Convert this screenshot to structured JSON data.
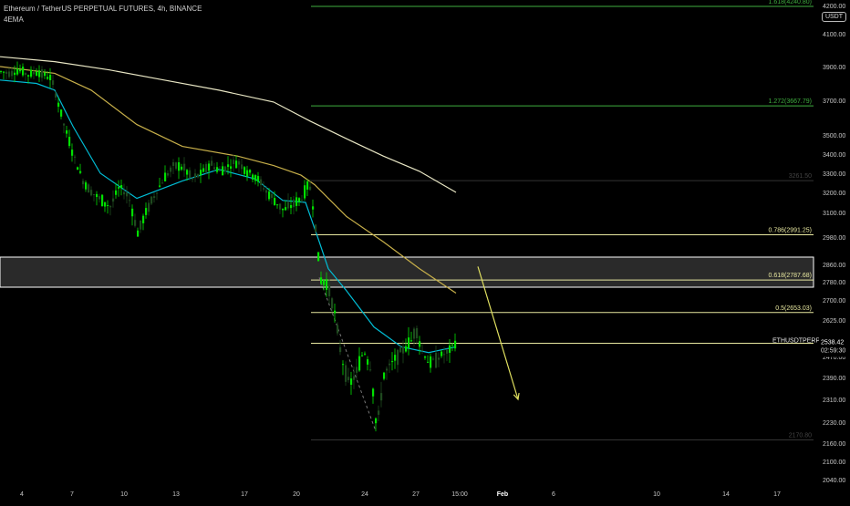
{
  "header": {
    "title": "Ethereum / TetherUS PERPETUAL FUTURES, 4h, BINANCE",
    "indicator": "4EMA",
    "currency_badge": "USDT"
  },
  "colors": {
    "background": "#000000",
    "up_candle": "#00e000",
    "down_candle": "#1f4a1f",
    "ema_fast": "#00bcd4",
    "ema_mid": "#26a69a",
    "ema_slow": "#c8b04a",
    "ema_long": "#e8e6c4",
    "fib_green": "#3fae3f",
    "fib_yellow": "#e8e8a0",
    "zone_fill": "#2a2a2a",
    "arrow": "#e0e060",
    "axis_text": "#c8c8c8"
  },
  "chart_data": {
    "type": "candlestick",
    "title": "Ethereum / TetherUS PERPETUAL FUTURES, 4h, BINANCE",
    "symbol": "ETHUSDTPERP",
    "last_price": "2538.42",
    "countdown": "02:59:30",
    "y_ticks": [
      "4200.00",
      "4100.00",
      "3900.00",
      "3700.00",
      "3500.00",
      "3400.00",
      "3300.00",
      "3200.00",
      "3100.00",
      "2980.00",
      "2860.00",
      "2780.00",
      "2700.00",
      "2625.00",
      "2550.00",
      "2470.00",
      "2390.00",
      "2310.00",
      "2230.00",
      "2160.00",
      "2100.00",
      "2040.00"
    ],
    "x_ticks": [
      "4",
      "7",
      "10",
      "13",
      "17",
      "20",
      "24",
      "27",
      "15:00",
      "Feb",
      "6",
      "10",
      "14",
      "17"
    ],
    "fib_levels": [
      {
        "label": "1.618(4240.80)",
        "value": 4240.8,
        "color": "green"
      },
      {
        "label": "1.272(3667.79)",
        "value": 3667.79,
        "color": "green"
      },
      {
        "label": "3261.50",
        "value": 3261.5,
        "color": "faint"
      },
      {
        "label": "0.786(2991.25)",
        "value": 2991.25,
        "color": "yellow"
      },
      {
        "label": "0.618(2787.68)",
        "value": 2787.68,
        "color": "yellow"
      },
      {
        "label": "0.5(2653.03)",
        "value": 2653.03,
        "color": "yellow"
      },
      {
        "label": "2170.80",
        "value": 2170.8,
        "color": "faint"
      }
    ],
    "resistance_zone": [
      2780,
      2860
    ],
    "ethusd_line": {
      "label": "ETHUSDTPERP",
      "value": 2538.42
    },
    "ema_long": [
      [
        0,
        3960
      ],
      [
        60,
        3930
      ],
      [
        120,
        3880
      ],
      [
        180,
        3820
      ],
      [
        240,
        3760
      ],
      [
        300,
        3690
      ],
      [
        340,
        3580
      ],
      [
        380,
        3480
      ],
      [
        420,
        3390
      ],
      [
        460,
        3310
      ],
      [
        500,
        3200
      ]
    ],
    "ema_slow": [
      [
        0,
        3900
      ],
      [
        60,
        3860
      ],
      [
        100,
        3760
      ],
      [
        150,
        3560
      ],
      [
        200,
        3440
      ],
      [
        260,
        3390
      ],
      [
        300,
        3340
      ],
      [
        330,
        3290
      ],
      [
        345,
        3240
      ],
      [
        380,
        3080
      ],
      [
        420,
        2960
      ],
      [
        460,
        2840
      ],
      [
        500,
        2730
      ]
    ],
    "ema_fast": [
      [
        0,
        3820
      ],
      [
        40,
        3800
      ],
      [
        60,
        3760
      ],
      [
        80,
        3550
      ],
      [
        110,
        3300
      ],
      [
        150,
        3170
      ],
      [
        200,
        3260
      ],
      [
        240,
        3320
      ],
      [
        280,
        3270
      ],
      [
        310,
        3160
      ],
      [
        335,
        3150
      ],
      [
        350,
        2960
      ],
      [
        360,
        2840
      ],
      [
        380,
        2740
      ],
      [
        410,
        2600
      ],
      [
        440,
        2520
      ],
      [
        470,
        2490
      ],
      [
        500,
        2520
      ]
    ],
    "arrow": {
      "from": [
        524,
        2850
      ],
      "to": [
        568,
        2310
      ]
    },
    "candles_path": [
      [
        0,
        3870
      ],
      [
        10,
        3860
      ],
      [
        20,
        3880
      ],
      [
        30,
        3850
      ],
      [
        40,
        3870
      ],
      [
        55,
        3830
      ],
      [
        62,
        3700
      ],
      [
        70,
        3540
      ],
      [
        80,
        3390
      ],
      [
        90,
        3260
      ],
      [
        100,
        3200
      ],
      [
        110,
        3160
      ],
      [
        120,
        3130
      ],
      [
        130,
        3230
      ],
      [
        140,
        3180
      ],
      [
        150,
        3000
      ],
      [
        160,
        3110
      ],
      [
        170,
        3200
      ],
      [
        180,
        3280
      ],
      [
        190,
        3340
      ],
      [
        200,
        3330
      ],
      [
        210,
        3270
      ],
      [
        220,
        3300
      ],
      [
        230,
        3350
      ],
      [
        240,
        3310
      ],
      [
        250,
        3340
      ],
      [
        260,
        3360
      ],
      [
        270,
        3310
      ],
      [
        280,
        3280
      ],
      [
        290,
        3210
      ],
      [
        300,
        3160
      ],
      [
        310,
        3110
      ],
      [
        320,
        3140
      ],
      [
        330,
        3170
      ],
      [
        338,
        3250
      ],
      [
        344,
        3080
      ],
      [
        350,
        2790
      ],
      [
        358,
        2770
      ],
      [
        366,
        2650
      ],
      [
        374,
        2460
      ],
      [
        382,
        2360
      ],
      [
        390,
        2410
      ],
      [
        398,
        2500
      ],
      [
        406,
        2420
      ],
      [
        412,
        2200
      ],
      [
        420,
        2400
      ],
      [
        430,
        2450
      ],
      [
        440,
        2500
      ],
      [
        450,
        2550
      ],
      [
        455,
        2600
      ],
      [
        462,
        2500
      ],
      [
        470,
        2440
      ],
      [
        480,
        2470
      ],
      [
        490,
        2490
      ],
      [
        498,
        2540
      ]
    ]
  }
}
